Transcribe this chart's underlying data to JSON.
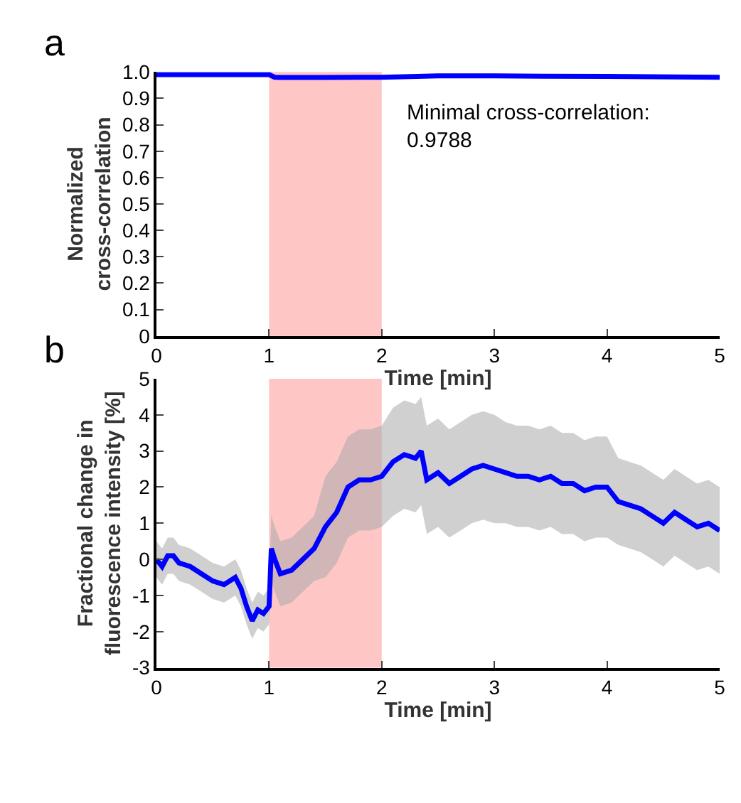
{
  "chart_data": [
    {
      "type": "line",
      "xlabel": "Time [min]",
      "ylabel": "Normalized\ncross-correlation",
      "x": [
        0,
        0.5,
        1,
        1.05,
        1.1,
        1.5,
        2,
        2.5,
        3,
        4,
        5
      ],
      "series": [
        {
          "color": "#0000ff",
          "values": [
            0.99,
            0.99,
            0.99,
            0.98,
            0.979,
            0.979,
            0.98,
            0.985,
            0.985,
            0.983,
            0.98
          ]
        }
      ],
      "xlim": [
        0,
        5
      ],
      "xticks": [
        0,
        1,
        2,
        3,
        4,
        5
      ],
      "ylim": [
        0,
        1.0
      ],
      "yticks": [
        0,
        {
          "value": 0.1,
          "label": "0.1"
        },
        {
          "value": 0.2,
          "label": "0.2"
        },
        {
          "value": 0.3,
          "label": "0.3"
        },
        {
          "value": 0.4,
          "label": "0.4"
        },
        {
          "value": 0.5,
          "label": "0.5"
        },
        {
          "value": 0.6,
          "label": "0.6"
        },
        {
          "value": 0.7,
          "label": "0.7"
        },
        {
          "value": 0.8,
          "label": "0.8"
        },
        {
          "value": 0.9,
          "label": "0.9"
        },
        {
          "value": 1.0,
          "label": "1.0"
        }
      ],
      "bands": [
        {
          "axis": "x",
          "from": 1,
          "to": 2,
          "color": "#ff8080"
        }
      ],
      "annotations": [
        "a",
        "Minimal cross-correlation:\n0.9788"
      ],
      "grid": false,
      "legend": false
    },
    {
      "type": "line",
      "xlabel": "Time [min]",
      "ylabel": "Fractional change in\nfluorescence intensity [%]",
      "x": [
        0,
        0.05,
        0.1,
        0.15,
        0.2,
        0.3,
        0.4,
        0.5,
        0.6,
        0.7,
        0.75,
        0.8,
        0.85,
        0.9,
        0.95,
        1.0,
        1.02,
        1.05,
        1.1,
        1.2,
        1.3,
        1.4,
        1.5,
        1.6,
        1.7,
        1.8,
        1.9,
        2.0,
        2.1,
        2.2,
        2.3,
        2.35,
        2.4,
        2.5,
        2.6,
        2.7,
        2.8,
        2.9,
        3.0,
        3.1,
        3.2,
        3.3,
        3.4,
        3.5,
        3.6,
        3.7,
        3.8,
        3.9,
        4.0,
        4.1,
        4.2,
        4.3,
        4.4,
        4.5,
        4.6,
        4.7,
        4.8,
        4.9,
        5.0
      ],
      "series": [
        {
          "color": "#0000ff",
          "values": [
            0,
            -0.2,
            0.1,
            0.1,
            -0.1,
            -0.2,
            -0.4,
            -0.6,
            -0.7,
            -0.5,
            -0.8,
            -1.3,
            -1.7,
            -1.4,
            -1.5,
            -1.3,
            0.3,
            0,
            -0.4,
            -0.3,
            0,
            0.3,
            0.9,
            1.3,
            2.0,
            2.2,
            2.2,
            2.3,
            2.7,
            2.9,
            2.8,
            3.0,
            2.2,
            2.4,
            2.1,
            2.3,
            2.5,
            2.6,
            2.5,
            2.4,
            2.3,
            2.3,
            2.2,
            2.3,
            2.1,
            2.1,
            1.9,
            2.0,
            2.0,
            1.6,
            1.5,
            1.4,
            1.2,
            1.0,
            1.3,
            1.1,
            0.9,
            1.0,
            0.8
          ],
          "upper": [
            0.5,
            0.3,
            0.6,
            0.6,
            0.4,
            0.3,
            0.1,
            -0.1,
            -0.2,
            0,
            -0.3,
            -0.8,
            -1.2,
            -0.9,
            -1.0,
            -0.8,
            1.2,
            0.9,
            0.5,
            0.6,
            0.9,
            1.2,
            2.3,
            2.7,
            3.4,
            3.6,
            3.6,
            3.7,
            4.2,
            4.4,
            4.3,
            4.5,
            3.7,
            3.9,
            3.6,
            3.8,
            4.0,
            4.1,
            4.0,
            3.8,
            3.7,
            3.7,
            3.6,
            3.7,
            3.5,
            3.5,
            3.3,
            3.4,
            3.4,
            2.8,
            2.7,
            2.6,
            2.4,
            2.2,
            2.5,
            2.3,
            2.1,
            2.2,
            2.0
          ],
          "lower": [
            -0.5,
            -0.7,
            -0.4,
            -0.4,
            -0.6,
            -0.7,
            -0.9,
            -1.1,
            -1.2,
            -1.0,
            -1.3,
            -1.8,
            -2.2,
            -1.9,
            -2.0,
            -1.8,
            -0.6,
            -0.9,
            -1.3,
            -1.2,
            -0.9,
            -0.6,
            -0.5,
            -0.1,
            0.6,
            0.8,
            0.8,
            0.9,
            1.2,
            1.4,
            1.3,
            1.5,
            0.7,
            0.9,
            0.6,
            0.8,
            1.0,
            1.1,
            1.0,
            1.0,
            0.9,
            0.9,
            0.8,
            0.9,
            0.7,
            0.7,
            0.5,
            0.6,
            0.6,
            0.4,
            0.3,
            0.2,
            0,
            -0.2,
            0.1,
            -0.1,
            -0.3,
            -0.2,
            -0.4
          ]
        }
      ],
      "xlim": [
        0,
        5
      ],
      "xticks": [
        0,
        1,
        2,
        3,
        4,
        5
      ],
      "ylim": [
        -3,
        5
      ],
      "yticks": [
        -3,
        -2,
        -1,
        0,
        1,
        2,
        3,
        4,
        5
      ],
      "bands": [
        {
          "axis": "x",
          "from": 1,
          "to": 2,
          "color": "#ff8080"
        }
      ],
      "annotations": [
        "b"
      ],
      "grid": false,
      "legend": false
    }
  ]
}
